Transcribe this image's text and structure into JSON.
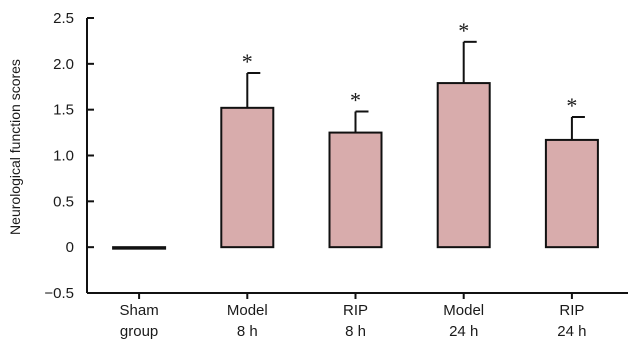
{
  "chart_data": {
    "type": "bar",
    "ylabel": "Neurological function scores",
    "ylim": [
      -0.5,
      2.5
    ],
    "yticks": [
      -0.5,
      0,
      0.5,
      1.0,
      1.5,
      2.0,
      2.5
    ],
    "ytick_labels": [
      "−0.5",
      "0",
      "0.5",
      "1.0",
      "1.5",
      "2.0",
      "2.5"
    ],
    "categories": [
      [
        "Sham",
        "group"
      ],
      [
        "Model",
        "8 h"
      ],
      [
        "RIP",
        "8 h"
      ],
      [
        "Model",
        "24 h"
      ],
      [
        "RIP",
        "24 h"
      ]
    ],
    "values": [
      0.0,
      1.52,
      1.25,
      1.79,
      1.17
    ],
    "errors": [
      0.0,
      0.38,
      0.23,
      0.45,
      0.25
    ],
    "significance": [
      "",
      "*",
      "*",
      "*",
      "*"
    ],
    "bar_color": "#d8acac",
    "bar_edge_color": "#111111",
    "grid": false
  }
}
